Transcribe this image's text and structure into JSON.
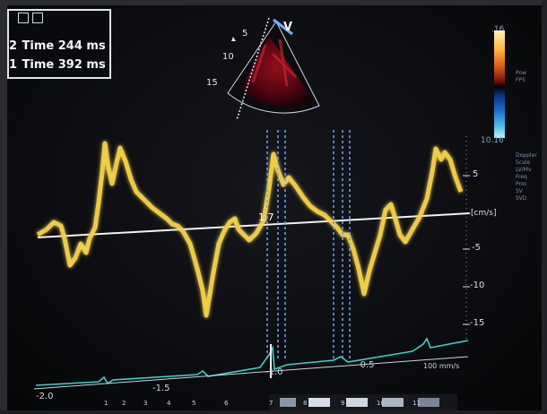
{
  "measurements": [
    {
      "index": "2",
      "label": "Time",
      "value": "244 ms"
    },
    {
      "index": "1",
      "label": "Time",
      "value": "392 ms"
    }
  ],
  "sector": {
    "depth_labels": [
      "5",
      "10",
      "15"
    ],
    "marker": "V"
  },
  "colorbar": {
    "top": ".16",
    "bottom": "10.16",
    "labels": [
      "Pow",
      "FPS"
    ]
  },
  "spectrum": {
    "unit": "[cm/s]",
    "y_ticks": [
      "5",
      "-5",
      "-10",
      "-15"
    ],
    "baseline_label": "1.7",
    "x_ticks": [
      "-2.0",
      "-1.5",
      "-1.0",
      "-0.5"
    ],
    "scale_label": "100 mm/s"
  },
  "side_panel": [
    "Doppler",
    "Scale",
    "LV/Mv",
    "Freq",
    "Proc",
    "SV",
    "SVD"
  ],
  "bottom_controls": [
    "1",
    "2",
    "3",
    "4",
    "5",
    "6",
    "7",
    "8",
    "9",
    "10",
    "11"
  ],
  "colors": {
    "trace": "#f4d24a",
    "ecg": "#3fd0c8",
    "baseline": "#f2f2f2",
    "markers": "#6fa0ff"
  }
}
